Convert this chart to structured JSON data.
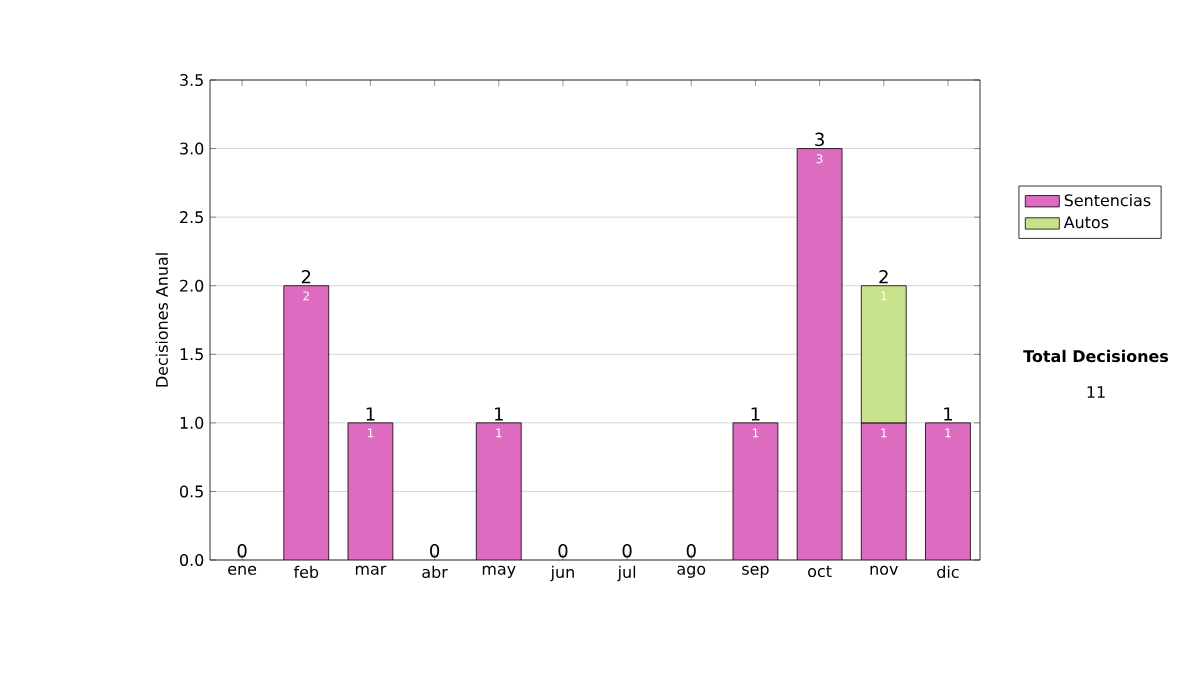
{
  "chart_data": {
    "type": "bar",
    "stacked": true,
    "ylabel": "Decisiones Anual",
    "categories": [
      "ene",
      "feb",
      "mar",
      "abr",
      "may",
      "jun",
      "jul",
      "ago",
      "sep",
      "oct",
      "nov",
      "dic"
    ],
    "series": [
      {
        "name": "Sentencias",
        "color": "#dd6cc0",
        "values": [
          0,
          2,
          1,
          0,
          1,
          0,
          0,
          0,
          1,
          3,
          1,
          1
        ],
        "value_labels": [
          null,
          "2",
          "1",
          null,
          "1",
          null,
          null,
          null,
          "1",
          "3",
          "1",
          "1"
        ]
      },
      {
        "name": "Autos",
        "color": "#c8e28c",
        "values": [
          null,
          null,
          null,
          null,
          null,
          null,
          null,
          null,
          null,
          null,
          1,
          null
        ],
        "value_labels": [
          null,
          null,
          null,
          null,
          null,
          null,
          null,
          null,
          null,
          null,
          "1",
          null
        ]
      }
    ],
    "ylim": [
      0,
      3.5
    ],
    "yticks": [
      {
        "value": 0,
        "label": "0.0"
      },
      {
        "value": 0.5,
        "label": "0.5"
      },
      {
        "value": 1,
        "label": "1.0"
      },
      {
        "value": 1.5,
        "label": "1.5"
      },
      {
        "value": 2,
        "label": "2.0"
      },
      {
        "value": 2.5,
        "label": "2.5"
      },
      {
        "value": 3,
        "label": "3.0"
      },
      {
        "value": 3.5,
        "label": "3.5"
      }
    ],
    "grid": "y",
    "legend": "right",
    "totals": [
      "0",
      "2",
      "1",
      "0",
      "1",
      "0",
      "0",
      "0",
      "1",
      "3",
      "2",
      "1"
    ],
    "annotations": [
      "Total Decisiones",
      "11"
    ]
  }
}
